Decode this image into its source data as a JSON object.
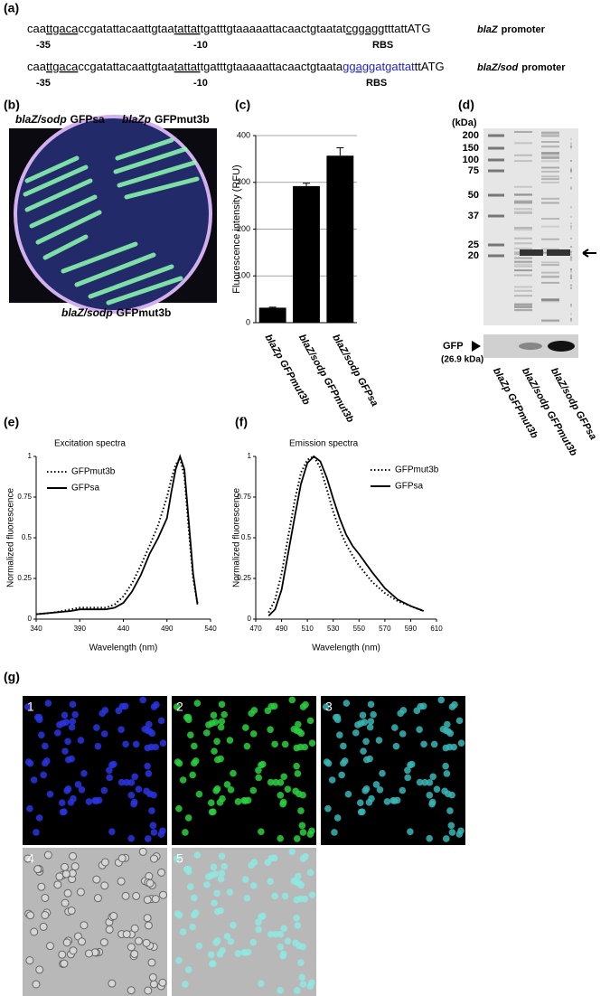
{
  "panel_a": {
    "label": "(a)",
    "rows": [
      {
        "segments": [
          {
            "text": "caa"
          },
          {
            "text": "ttgaca",
            "underline": true
          },
          {
            "text": "ccgatattacaattgtaa"
          },
          {
            "text": "tattat",
            "underline": true
          },
          {
            "text": "tgatttgtaaaaattacaactgtaatat"
          },
          {
            "text": "cggagg",
            "underline": true
          },
          {
            "text": "tttattATG"
          }
        ],
        "minus35": "-35",
        "minus10": "-10",
        "rbs": "RBS",
        "name": [
          "blaZ",
          "promoter"
        ]
      },
      {
        "segments": [
          {
            "text": "caa"
          },
          {
            "text": "ttgaca",
            "underline": true
          },
          {
            "text": "ccgatattacaattgtaa"
          },
          {
            "text": "tattat",
            "underline": true
          },
          {
            "text": "tgatttgtaaaaattacaactgtaata"
          },
          {
            "text": "ggagg",
            "underline": true,
            "color": "#1f1fd6"
          },
          {
            "text": "atgattat",
            "color": "#1f1fd6"
          },
          {
            "text": "ttATG"
          }
        ],
        "minus35": "-35",
        "minus10": "-10",
        "rbs": "RBS",
        "name": [
          "blaZ/sod",
          "promoter"
        ]
      }
    ]
  },
  "panel_b": {
    "label": "(b)",
    "strains": [
      [
        "blaZ/sodp",
        "GFPsa"
      ],
      [
        "blaZp",
        "GFPmut3b"
      ],
      [
        "blaZ/sodp",
        "GFPmut3b"
      ]
    ]
  },
  "panel_d": {
    "label": "(d)",
    "unit": "(kDa)",
    "markers": [
      200,
      150,
      100,
      75,
      50,
      37,
      25,
      20
    ],
    "gfp": "GFP",
    "gfp_size": "(26.9 kDa)",
    "lanes": [
      "blaZp GFPmut3b",
      "blaZ/sodp GFPmut3b",
      "blaZ/sodp GFPsa"
    ]
  },
  "panel_g": {
    "label": "(g)",
    "tiles": [
      "1",
      "2",
      "3",
      "4",
      "5"
    ]
  },
  "chart_data": [
    {
      "type": "bar",
      "label": "(c)",
      "ylabel": "Fluorescence intensity (RFU)",
      "categories": [
        "blaZp GFPmut3b",
        "blaZ/sodp GFPmut3b",
        "blaZ/sodp GFPsa"
      ],
      "values": [
        32,
        292,
        357
      ],
      "errors": [
        1,
        6,
        17
      ],
      "color": "#000000",
      "ylim": [
        0,
        400
      ],
      "yticks": [
        0,
        100,
        200,
        300,
        400
      ],
      "grid": true
    },
    {
      "type": "line",
      "label": "(e)",
      "title": "Excitation spectra",
      "xlabel": "Wavelength (nm)",
      "ylabel": "Normalized fluorescence",
      "x": [
        340,
        360,
        380,
        390,
        400,
        420,
        430,
        440,
        450,
        460,
        470,
        480,
        490,
        495,
        500,
        505,
        510,
        515,
        520,
        525
      ],
      "series": [
        {
          "name": "GFPmut3b",
          "color": "#000000",
          "dash": "dotted",
          "values": [
            0.03,
            0.04,
            0.06,
            0.07,
            0.07,
            0.07,
            0.09,
            0.14,
            0.22,
            0.33,
            0.45,
            0.58,
            0.75,
            0.86,
            0.95,
            0.99,
            0.88,
            0.55,
            0.25,
            0.1
          ]
        },
        {
          "name": "GFPsa",
          "color": "#000000",
          "dash": "solid",
          "values": [
            0.03,
            0.04,
            0.05,
            0.06,
            0.06,
            0.06,
            0.07,
            0.1,
            0.17,
            0.27,
            0.4,
            0.5,
            0.62,
            0.78,
            0.92,
            1,
            0.92,
            0.6,
            0.28,
            0.09
          ]
        }
      ],
      "xlim": [
        340,
        540
      ],
      "xticks": [
        340,
        390,
        440,
        490,
        540
      ],
      "ylim": [
        0,
        1
      ],
      "yticks": [
        0,
        0.25,
        0.5,
        0.75,
        1
      ],
      "legend": "upper left"
    },
    {
      "type": "line",
      "label": "(f)",
      "title": "Emission spectra",
      "xlabel": "Wavelength (nm)",
      "ylabel": "Normalized fluorescence",
      "x": [
        480,
        485,
        490,
        495,
        500,
        505,
        510,
        515,
        520,
        525,
        530,
        535,
        540,
        545,
        550,
        560,
        570,
        580,
        590,
        600
      ],
      "series": [
        {
          "name": "GFPmut3b",
          "color": "#000000",
          "dash": "dotted",
          "values": [
            0.04,
            0.12,
            0.28,
            0.5,
            0.72,
            0.9,
            0.98,
            1,
            0.93,
            0.8,
            0.66,
            0.55,
            0.46,
            0.39,
            0.33,
            0.23,
            0.16,
            0.11,
            0.08,
            0.05
          ]
        },
        {
          "name": "GFPsa",
          "color": "#000000",
          "dash": "solid",
          "values": [
            0.02,
            0.06,
            0.18,
            0.4,
            0.62,
            0.83,
            0.96,
            1,
            0.97,
            0.87,
            0.74,
            0.62,
            0.52,
            0.45,
            0.4,
            0.29,
            0.19,
            0.12,
            0.08,
            0.05
          ]
        }
      ],
      "xlim": [
        470,
        610
      ],
      "xticks": [
        470,
        490,
        510,
        530,
        550,
        570,
        590,
        610
      ],
      "ylim": [
        0,
        1
      ],
      "yticks": [
        0,
        0.25,
        0.5,
        0.75,
        1
      ],
      "legend": "upper right"
    }
  ]
}
